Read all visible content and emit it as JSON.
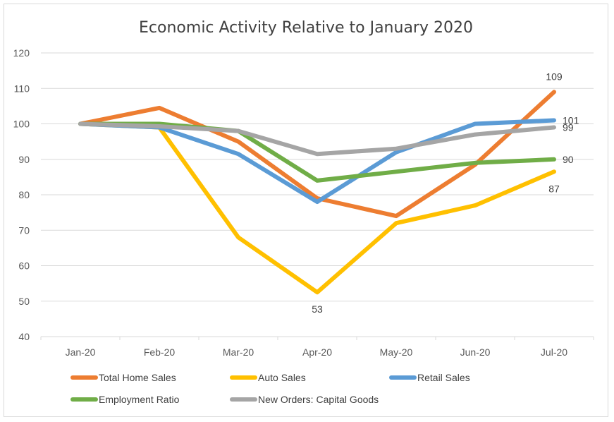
{
  "chart_data": {
    "type": "line",
    "title": "Economic Activity Relative to January 2020",
    "xlabel": "",
    "ylabel": "",
    "categories": [
      "Jan-20",
      "Feb-20",
      "Mar-20",
      "Apr-20",
      "May-20",
      "Jun-20",
      "Jul-20"
    ],
    "ylim": [
      40,
      120
    ],
    "yticks": [
      40,
      50,
      60,
      70,
      80,
      90,
      100,
      110,
      120
    ],
    "grid": true,
    "legend_position": "bottom",
    "series": [
      {
        "name": "Total Home Sales",
        "color": "#ED7D31",
        "values": [
          100,
          104.5,
          95,
          79,
          74,
          88.5,
          109
        ]
      },
      {
        "name": "Auto Sales",
        "color": "#FFC000",
        "values": [
          100,
          99,
          68,
          52.5,
          72,
          77,
          86.5
        ]
      },
      {
        "name": "Retail Sales",
        "color": "#5B9BD5",
        "values": [
          100,
          99,
          91.5,
          78,
          92,
          100,
          101
        ]
      },
      {
        "name": "Employment Ratio",
        "color": "#70AD47",
        "values": [
          100,
          100,
          98,
          84,
          86.5,
          89,
          90
        ]
      },
      {
        "name": "New Orders: Capital Goods",
        "color": "#A5A5A5",
        "values": [
          100,
          99.3,
          98,
          91.5,
          93,
          97,
          99
        ]
      }
    ],
    "annotations": [
      {
        "text": "109",
        "series": "Total Home Sales",
        "category": "Jul-20",
        "placement": "above"
      },
      {
        "text": "101",
        "series": "Retail Sales",
        "category": "Jul-20",
        "placement": "right"
      },
      {
        "text": "99",
        "series": "New Orders: Capital Goods",
        "category": "Jul-20",
        "placement": "right"
      },
      {
        "text": "90",
        "series": "Employment Ratio",
        "category": "Jul-20",
        "placement": "right"
      },
      {
        "text": "87",
        "series": "Auto Sales",
        "category": "Jul-20",
        "placement": "below"
      },
      {
        "text": "53",
        "series": "Auto Sales",
        "category": "Apr-20",
        "placement": "below"
      }
    ]
  }
}
